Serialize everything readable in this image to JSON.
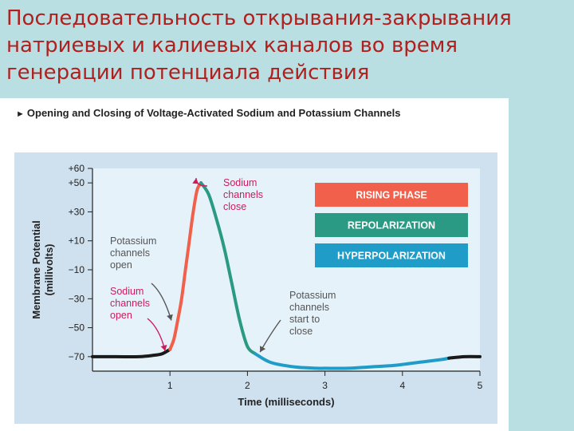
{
  "slide": {
    "title_lines": [
      "Последовательность открывания-закрывания",
      "натриевых и калиевых каналов во время",
      "генерации потенциала действия"
    ]
  },
  "figure": {
    "caption": "Opening and Closing of Voltage-Activated Sodium and Potassium Channels",
    "caption_marker": "►"
  },
  "chart_data": {
    "type": "line",
    "title": "Opening and Closing of Voltage-Activated Sodium and Potassium Channels",
    "xlabel": "Time (milliseconds)",
    "ylabel": [
      "Membrane Potential",
      "(millivolts)"
    ],
    "xlim": [
      0,
      5
    ],
    "ylim": [
      -80,
      60
    ],
    "x_ticks": [
      1,
      2,
      3,
      4,
      5
    ],
    "y_ticks": [
      60,
      50,
      30,
      10,
      -10,
      -30,
      -50,
      -70
    ],
    "y_tick_labels": [
      "+60",
      "+50",
      "+30",
      "+10",
      "−10",
      "−30",
      "−50",
      "−70"
    ],
    "grid": false,
    "legend_position": "top-right",
    "series": [
      {
        "phase": "resting",
        "color": "#1a1a1a",
        "x": [
          0,
          0.3,
          0.6,
          0.8,
          0.9,
          1.0
        ],
        "y": [
          -70,
          -70,
          -70,
          -69,
          -68,
          -65
        ]
      },
      {
        "phase": "rising",
        "color": "#f0604a",
        "x": [
          1.0,
          1.05,
          1.1,
          1.15,
          1.2,
          1.25,
          1.3,
          1.35,
          1.4
        ],
        "y": [
          -65,
          -58,
          -45,
          -30,
          -10,
          10,
          30,
          45,
          50
        ]
      },
      {
        "phase": "repolarization",
        "color": "#2a9a85",
        "x": [
          1.4,
          1.5,
          1.6,
          1.7,
          1.8,
          1.9,
          2.0,
          2.1
        ],
        "y": [
          50,
          42,
          25,
          5,
          -20,
          -45,
          -63,
          -68
        ]
      },
      {
        "phase": "hyperpolarization",
        "color": "#1f9cc8",
        "x": [
          2.1,
          2.3,
          2.6,
          2.9,
          3.0,
          3.3,
          3.6,
          3.9,
          4.2,
          4.5,
          4.6
        ],
        "y": [
          -68,
          -74,
          -77,
          -78,
          -78,
          -78,
          -77,
          -76,
          -74,
          -72,
          -71
        ]
      },
      {
        "phase": "resting",
        "color": "#1a1a1a",
        "x": [
          4.6,
          4.8,
          5.0
        ],
        "y": [
          -71,
          -70,
          -70
        ]
      }
    ],
    "legend": [
      {
        "label": "RISING PHASE",
        "color": "#f0604a"
      },
      {
        "label": "REPOLARIZATION",
        "color": "#2a9a85"
      },
      {
        "label": "HYPERPOLARIZATION",
        "color": "#1f9cc8"
      }
    ],
    "annotations": [
      {
        "lines": [
          "Sodium",
          "channels",
          "close"
        ],
        "color": "#cc1c5c",
        "x": 1.4,
        "y": 50
      },
      {
        "lines": [
          "Potassium",
          "channels",
          "open"
        ],
        "color": "#555555",
        "x": 1.1,
        "y": -45
      },
      {
        "lines": [
          "Sodium",
          "channels",
          "open"
        ],
        "color": "#cc1c5c",
        "x": 1.0,
        "y": -65
      },
      {
        "lines": [
          "Potassium",
          "channels",
          "start to",
          "close"
        ],
        "color": "#555555",
        "x": 2.1,
        "y": -68
      }
    ],
    "colors": {
      "plot_background": "#e6f2fa",
      "figure_background": "#cfe0ee",
      "axis": "#222222"
    }
  }
}
